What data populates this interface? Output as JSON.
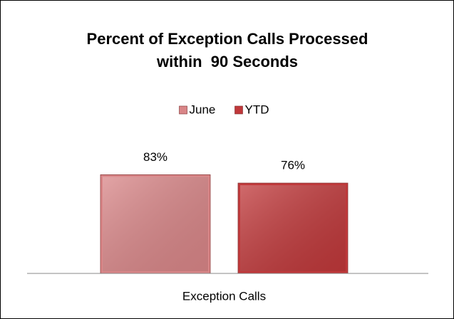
{
  "chart_data": {
    "type": "bar",
    "title": "Percent of Exception Calls Processed within  90 Seconds",
    "categories": [
      "Exception Calls"
    ],
    "series": [
      {
        "name": "June",
        "color": "#d98688",
        "values": [
          83
        ],
        "value_labels": [
          "83%"
        ]
      },
      {
        "name": "YTD",
        "color": "#c0383a",
        "values": [
          76
        ],
        "value_labels": [
          "76%"
        ]
      }
    ],
    "ylim": [
      0,
      100
    ],
    "legend": "top"
  }
}
